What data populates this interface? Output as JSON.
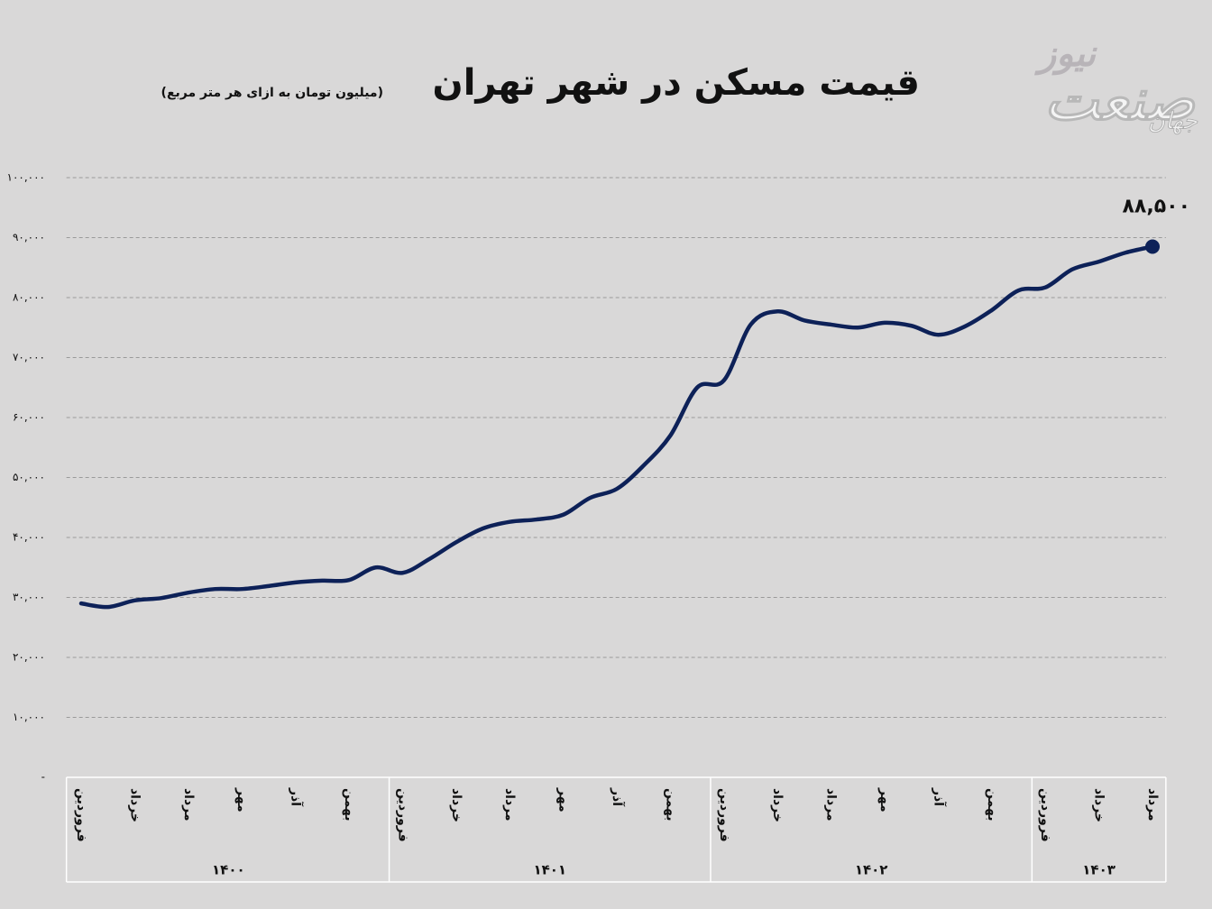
{
  "chart_data": {
    "type": "line",
    "title": "قیمت مسکن در شهر تهران",
    "subtitle": "(میلیون تومان به ازای هر متر مربع)",
    "logo": {
      "top": "جهان",
      "main": "صنعت",
      "sub": "نیوز"
    },
    "categories": [
      "فروردین",
      null,
      "خرداد",
      null,
      "مرداد",
      null,
      "مهر",
      null,
      "آذر",
      null,
      "بهمن",
      null,
      "فروردین",
      null,
      "خرداد",
      null,
      "مرداد",
      null,
      "مهر",
      null,
      "آذر",
      null,
      "بهمن",
      null,
      "فروردین",
      null,
      "خرداد",
      null,
      "مرداد",
      null,
      "مهر",
      null,
      "آذر",
      null,
      "بهمن",
      null,
      "فروردین",
      null,
      "خرداد",
      null,
      "مرداد"
    ],
    "groups": [
      "۱۴۰۰",
      "۱۴۰۱",
      "۱۴۰۲",
      "۱۴۰۳"
    ],
    "values": [
      29000,
      28400,
      29500,
      29900,
      30800,
      31400,
      31400,
      31900,
      32500,
      32800,
      32900,
      35000,
      34100,
      36400,
      39200,
      41500,
      42600,
      43000,
      43800,
      46600,
      48100,
      52000,
      57000,
      65000,
      66200,
      75500,
      77700,
      76200,
      75500,
      75000,
      75800,
      75300,
      73800,
      75200,
      77900,
      81200,
      81700,
      84700,
      86000,
      87500,
      88500
    ],
    "value_labels": [
      null,
      null,
      null,
      null,
      null,
      null,
      null,
      null,
      null,
      null,
      null,
      null,
      null,
      null,
      null,
      null,
      null,
      null,
      null,
      null,
      null,
      null,
      null,
      null,
      null,
      null,
      null,
      null,
      null,
      null,
      null,
      null,
      null,
      null,
      null,
      null,
      null,
      null,
      null,
      null,
      "۸۸,۵۰۰"
    ],
    "color": "#0d2158",
    "ylim": [
      0,
      100000
    ],
    "yticks": [
      {
        "value": 0,
        "label": "-"
      },
      {
        "value": 10000,
        "label": "۱۰,۰۰۰"
      },
      {
        "value": 20000,
        "label": "۲۰,۰۰۰"
      },
      {
        "value": 30000,
        "label": "۳۰,۰۰۰"
      },
      {
        "value": 40000,
        "label": "۴۰,۰۰۰"
      },
      {
        "value": 50000,
        "label": "۵۰,۰۰۰"
      },
      {
        "value": 60000,
        "label": "۶۰,۰۰۰"
      },
      {
        "value": 70000,
        "label": "۷۰,۰۰۰"
      },
      {
        "value": 80000,
        "label": "۸۰,۰۰۰"
      },
      {
        "value": 90000,
        "label": "۹۰,۰۰۰"
      },
      {
        "value": 100000,
        "label": "۱۰۰,۰۰۰"
      }
    ],
    "grid": true
  }
}
